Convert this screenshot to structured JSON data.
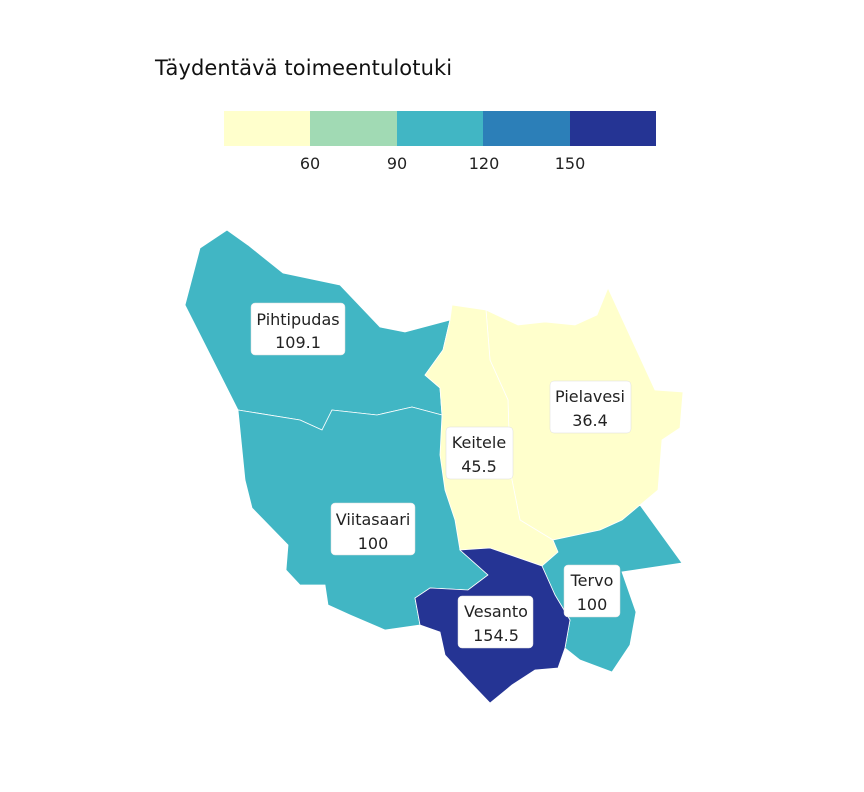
{
  "map": {
    "title": "Täydentävä toimeentulotuki",
    "legend": {
      "bins": [
        {
          "color": "#ffffcc"
        },
        {
          "color": "#a1dab4"
        },
        {
          "color": "#41b6c4"
        },
        {
          "color": "#2c7fb8"
        },
        {
          "color": "#253494"
        }
      ],
      "ticks": [
        "60",
        "90",
        "120",
        "150"
      ]
    },
    "regions": [
      {
        "name": "Pihtipudas",
        "value": "109.1",
        "color": "#41b6c4"
      },
      {
        "name": "Pielavesi",
        "value": "36.4",
        "color": "#ffffcc"
      },
      {
        "name": "Keitele",
        "value": "45.5",
        "color": "#ffffcc"
      },
      {
        "name": "Viitasaari",
        "value": "100",
        "color": "#41b6c4"
      },
      {
        "name": "Tervo",
        "value": "100",
        "color": "#41b6c4"
      },
      {
        "name": "Vesanto",
        "value": "154.5",
        "color": "#253494"
      }
    ]
  }
}
